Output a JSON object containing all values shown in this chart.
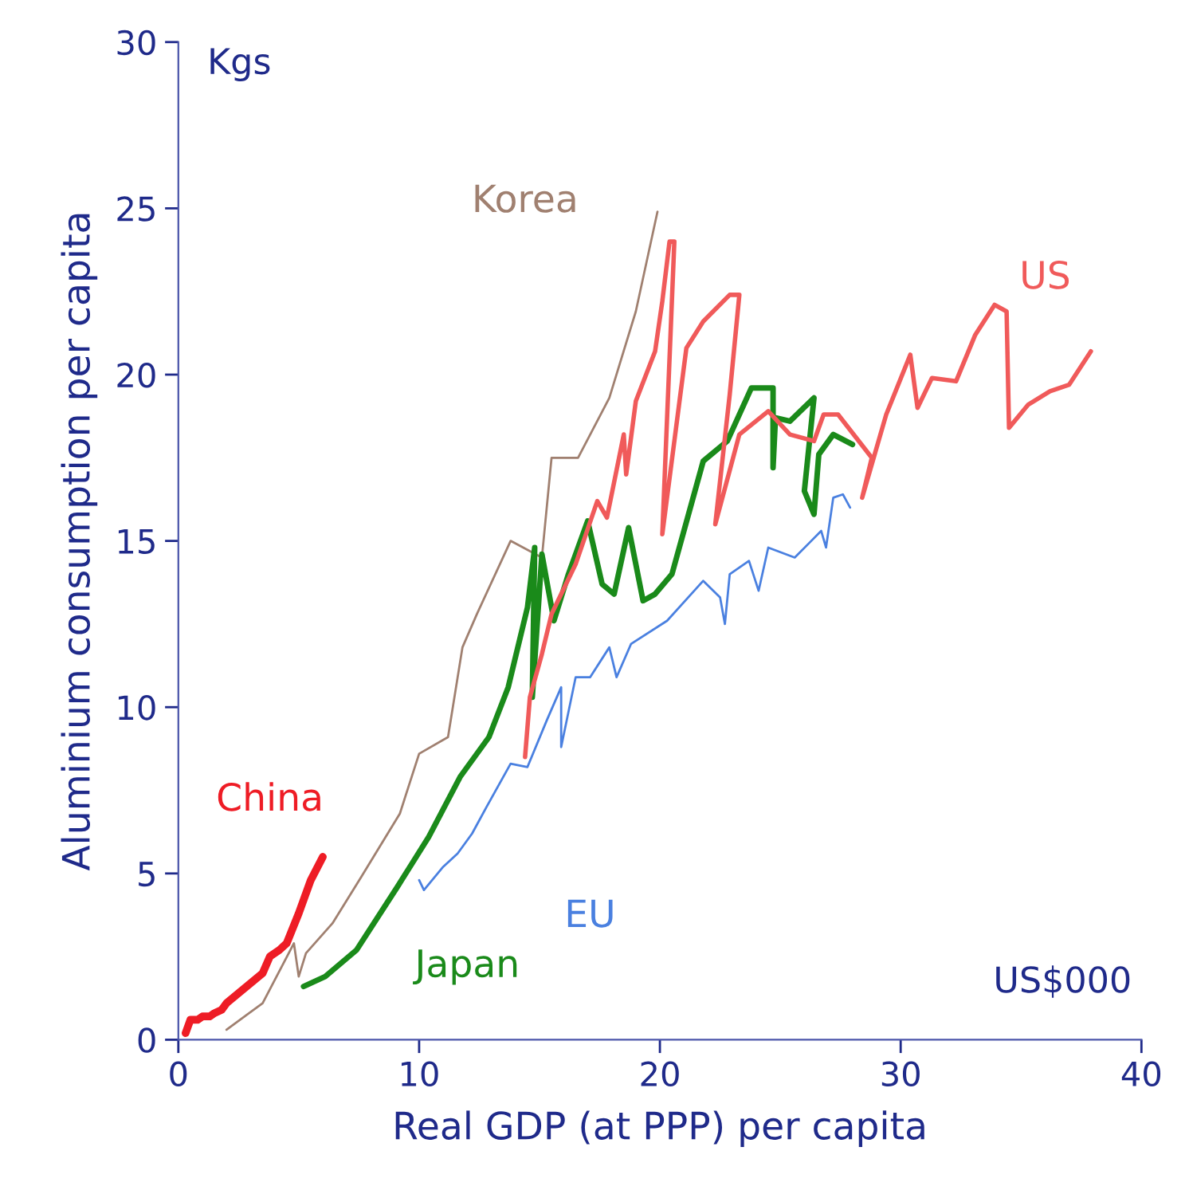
{
  "chart_data": {
    "type": "line",
    "xlabel": "Real GDP (at PPP) per capita",
    "ylabel": "Aluminium consumption per capita",
    "annotations": [
      "Kgs",
      "US$000"
    ],
    "xlim": [
      0,
      40
    ],
    "xticks": [
      0,
      10,
      20,
      30,
      40
    ],
    "ylim": [
      0,
      30
    ],
    "yticks": [
      0,
      5,
      10,
      15,
      20,
      25,
      30
    ],
    "grid": false,
    "legend": false,
    "marker": "none",
    "line_style": "solid",
    "series": [
      {
        "name": "China",
        "color": "#ee1c25",
        "x": [
          0.3,
          0.5,
          0.8,
          1.0,
          1.3,
          1.5,
          1.8,
          2.0,
          2.5,
          3.0,
          3.5,
          3.8,
          4.2,
          4.5,
          5.0,
          5.5,
          6.0
        ],
        "values": [
          0.2,
          0.6,
          0.6,
          0.7,
          0.7,
          0.8,
          0.9,
          1.1,
          1.4,
          1.7,
          2.0,
          2.5,
          2.7,
          2.9,
          3.8,
          4.8,
          5.5
        ]
      },
      {
        "name": "Korea",
        "color": "#a08070",
        "x": [
          2.0,
          3.5,
          4.8,
          5.0,
          5.3,
          6.4,
          7.6,
          9.2,
          10.0,
          11.2,
          11.8,
          12.4,
          13.8,
          15.1,
          15.5,
          16.6,
          17.9,
          19.0,
          19.9
        ],
        "values": [
          0.3,
          1.1,
          2.9,
          1.9,
          2.6,
          3.5,
          4.9,
          6.8,
          8.6,
          9.1,
          11.8,
          12.8,
          15.0,
          14.5,
          17.5,
          17.5,
          19.3,
          21.9,
          24.9
        ]
      },
      {
        "name": "Japan",
        "color": "#1a8a1a",
        "x": [
          5.2,
          6.1,
          7.4,
          9.1,
          10.4,
          11.7,
          12.9,
          13.7,
          14.5,
          14.8,
          14.7,
          15.1,
          15.6,
          16.2,
          17.0,
          17.6,
          18.1,
          18.7,
          19.3,
          19.8,
          20.5,
          21.8,
          22.8,
          23.8,
          24.7,
          24.7,
          24.8,
          25.4,
          26.4,
          26.0,
          26.4,
          26.6,
          27.2,
          28.0
        ],
        "values": [
          1.6,
          1.9,
          2.7,
          4.6,
          6.1,
          7.9,
          9.1,
          10.6,
          13.0,
          14.8,
          10.3,
          14.6,
          12.6,
          14.0,
          15.6,
          13.7,
          13.4,
          15.4,
          13.2,
          13.4,
          14.0,
          17.4,
          18.0,
          19.6,
          19.6,
          17.2,
          18.7,
          18.6,
          19.3,
          16.5,
          15.8,
          17.6,
          18.2,
          17.9
        ]
      },
      {
        "name": "US",
        "color": "#f05a5a",
        "x": [
          14.4,
          14.6,
          15.1,
          15.5,
          16.5,
          17.4,
          17.8,
          18.5,
          18.6,
          19.0,
          19.8,
          20.1,
          20.4,
          20.6,
          20.1,
          21.1,
          21.8,
          22.9,
          23.3,
          22.9,
          22.3,
          23.3,
          24.5,
          25.4,
          26.4,
          26.8,
          27.4,
          28.8,
          28.4,
          29.4,
          30.4,
          30.7,
          31.3,
          32.3,
          33.1,
          33.9,
          34.4,
          34.5,
          35.3,
          36.2,
          37.0,
          37.9
        ],
        "values": [
          8.5,
          10.3,
          11.6,
          12.8,
          14.3,
          16.2,
          15.7,
          18.2,
          17.0,
          19.2,
          20.7,
          22.2,
          24.0,
          24.0,
          15.2,
          20.8,
          21.6,
          22.4,
          22.4,
          19.4,
          15.5,
          18.2,
          18.9,
          18.2,
          18.0,
          18.8,
          18.8,
          17.5,
          16.3,
          18.8,
          20.6,
          19.0,
          19.9,
          19.8,
          21.2,
          22.1,
          21.9,
          18.4,
          19.1,
          19.5,
          19.7,
          20.7
        ]
      },
      {
        "name": "EU",
        "color": "#4a80e0",
        "x": [
          10.0,
          10.2,
          11.0,
          11.6,
          12.2,
          12.8,
          13.8,
          14.5,
          15.3,
          15.9,
          15.9,
          16.5,
          17.1,
          17.9,
          18.2,
          18.8,
          20.3,
          21.8,
          22.5,
          22.7,
          22.9,
          23.7,
          24.1,
          24.5,
          25.6,
          26.7,
          26.9,
          27.2,
          27.6,
          27.9
        ],
        "values": [
          4.8,
          4.5,
          5.2,
          5.6,
          6.2,
          7.0,
          8.3,
          8.2,
          9.6,
          10.6,
          8.8,
          10.9,
          10.9,
          11.8,
          10.9,
          11.9,
          12.6,
          13.8,
          13.3,
          12.5,
          14.0,
          14.4,
          13.5,
          14.8,
          14.5,
          15.3,
          14.8,
          16.3,
          16.4,
          16.0
        ]
      }
    ]
  }
}
